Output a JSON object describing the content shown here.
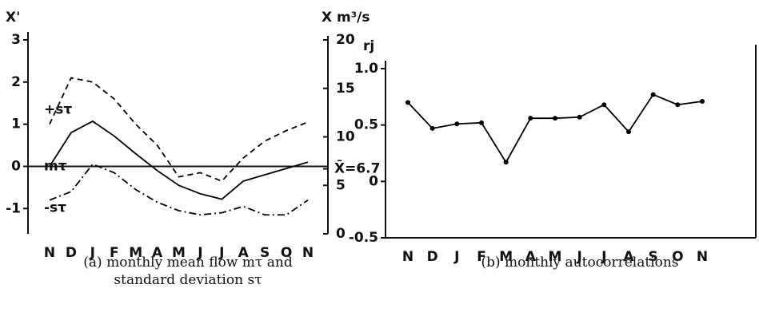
{
  "chart_data": [
    {
      "type": "line",
      "y_label": "X'",
      "y2_label": "X m³/s",
      "caption": "(a) monthly mean flow mτ and standard deviation sτ",
      "categories": [
        "N",
        "D",
        "J",
        "F",
        "M",
        "A",
        "M",
        "J",
        "J",
        "A",
        "S",
        "O",
        "N"
      ],
      "series": [
        {
          "name": "+sτ",
          "color": "#000000",
          "dash": "dashed",
          "values": [
            1.0,
            2.1,
            2.0,
            1.6,
            1.0,
            0.5,
            -0.25,
            -0.15,
            -0.35,
            0.2,
            0.6,
            0.85,
            1.05
          ]
        },
        {
          "name": "mτ",
          "color": "#000000",
          "dash": "solid",
          "values": [
            0,
            0.8,
            1.07,
            0.72,
            0.3,
            -0.1,
            -0.45,
            -0.65,
            -0.78,
            -0.35,
            -0.2,
            -0.05,
            0.1
          ]
        },
        {
          "name": "-sτ",
          "color": "#000000",
          "dash": "dashdot",
          "values": [
            -0.8,
            -0.6,
            0.05,
            -0.15,
            -0.55,
            -0.85,
            -1.05,
            -1.15,
            -1.1,
            -0.95,
            -1.15,
            -1.15,
            -0.8
          ]
        }
      ],
      "ylim": [
        -1.6,
        3
      ],
      "yticks": [
        -1,
        0,
        1,
        2,
        3
      ],
      "y2lim": [
        0,
        20
      ],
      "y2ticks": [
        0,
        5,
        10,
        15,
        20
      ],
      "mean_annotation": {
        "value": 6.7,
        "label": "X̄=6.7"
      }
    },
    {
      "type": "line",
      "y_label": "rj",
      "caption": "(b) monthly autocorrelations",
      "categories": [
        "N",
        "D",
        "J",
        "F",
        "M",
        "A",
        "M",
        "J",
        "J",
        "A",
        "S",
        "O",
        "N"
      ],
      "series": [
        {
          "color": "#000000",
          "dash": "solid",
          "markers": true,
          "values": [
            0.7,
            0.47,
            0.51,
            0.52,
            0.17,
            0.56,
            0.56,
            0.57,
            0.68,
            0.44,
            0.77,
            0.68,
            0.71
          ]
        }
      ],
      "ylim": [
        -0.5,
        1.0
      ],
      "yticks": [
        {
          "value": -0.5,
          "label": "-0.5"
        },
        0,
        0.5,
        {
          "value": 1,
          "label": "1.0"
        }
      ]
    }
  ]
}
